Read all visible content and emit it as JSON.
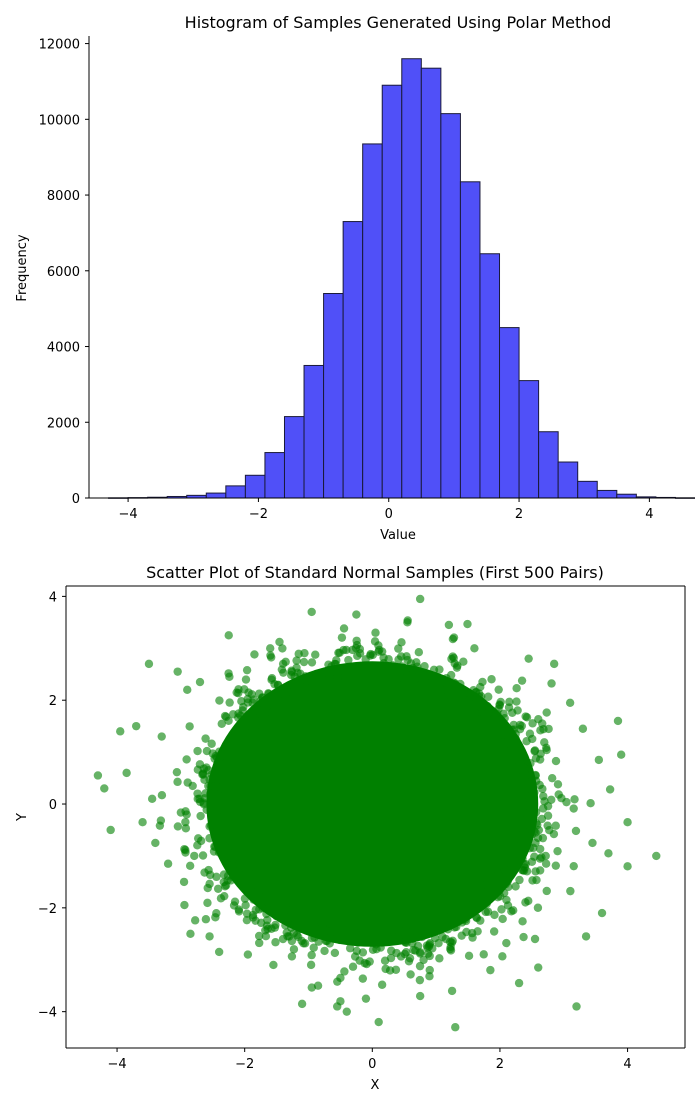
{
  "chart_data": [
    {
      "type": "bar",
      "title": "Histogram of Samples Generated Using Polar Method",
      "xlabel": "Value",
      "ylabel": "Frequency",
      "xlim": [
        -4.6,
        4.7
      ],
      "ylim": [
        0,
        12200
      ],
      "xticks": [
        -4,
        -2,
        0,
        2,
        4
      ],
      "xtick_labels": [
        "−4",
        "−2",
        "0",
        "2",
        "4"
      ],
      "yticks": [
        0,
        2000,
        4000,
        6000,
        8000,
        10000,
        12000
      ],
      "ytick_labels": [
        "0",
        "2000",
        "4000",
        "6000",
        "8000",
        "10000",
        "12000"
      ],
      "bar_color": "#5050f8",
      "edge_color": "#1a1a3a",
      "bins": {
        "start": -4.3,
        "width": 0.3,
        "counts": [
          5,
          10,
          20,
          40,
          70,
          130,
          320,
          600,
          1200,
          2150,
          3500,
          5400,
          7300,
          9350,
          10900,
          11600,
          11350,
          10150,
          8350,
          6450,
          4500,
          3100,
          1750,
          950,
          440,
          200,
          100,
          30,
          15,
          5
        ]
      },
      "grid": false
    },
    {
      "type": "scatter",
      "title": "Scatter Plot of Standard Normal Samples (First 500 Pairs)",
      "xlabel": "X",
      "ylabel": "Y",
      "xlim": [
        -4.8,
        4.9
      ],
      "ylim": [
        -4.7,
        4.2
      ],
      "xticks": [
        -4,
        -2,
        0,
        2,
        4
      ],
      "xtick_labels": [
        "−4",
        "−2",
        "0",
        "2",
        "4"
      ],
      "yticks": [
        -4,
        -2,
        0,
        2,
        4
      ],
      "ytick_labels": [
        "−4",
        "−2",
        "0",
        "2",
        "4"
      ],
      "point_color": "#008000",
      "point_alpha": 0.6,
      "points": [
        [
          -4.3,
          0.55
        ],
        [
          -4.2,
          0.3
        ],
        [
          -4.1,
          -0.5
        ],
        [
          -3.95,
          1.4
        ],
        [
          -3.85,
          0.6
        ],
        [
          -3.7,
          1.5
        ],
        [
          -3.5,
          2.7
        ],
        [
          -3.45,
          0.1
        ],
        [
          -3.3,
          1.3
        ],
        [
          -3.2,
          -1.15
        ],
        [
          -3.05,
          2.55
        ],
        [
          -2.95,
          -1.5
        ],
        [
          -2.9,
          2.2
        ],
        [
          -2.85,
          -2.5
        ],
        [
          -2.55,
          -2.55
        ],
        [
          -2.4,
          -2.85
        ],
        [
          -2.25,
          3.25
        ],
        [
          -1.95,
          -2.9
        ],
        [
          -1.6,
          3.0
        ],
        [
          -1.55,
          -3.1
        ],
        [
          -1.1,
          -3.85
        ],
        [
          -0.95,
          3.7
        ],
        [
          -0.85,
          -3.5
        ],
        [
          -0.55,
          -3.9
        ],
        [
          -0.5,
          -3.8
        ],
        [
          -0.4,
          -4.0
        ],
        [
          -0.25,
          3.65
        ],
        [
          -0.1,
          -3.75
        ],
        [
          0.05,
          3.3
        ],
        [
          0.1,
          -4.2
        ],
        [
          0.55,
          3.5
        ],
        [
          0.75,
          3.95
        ],
        [
          0.75,
          -3.7
        ],
        [
          0.9,
          -3.2
        ],
        [
          1.2,
          3.45
        ],
        [
          1.25,
          -3.6
        ],
        [
          1.3,
          -4.3
        ],
        [
          1.6,
          3.0
        ],
        [
          1.85,
          -3.2
        ],
        [
          2.3,
          -3.45
        ],
        [
          2.45,
          2.8
        ],
        [
          2.6,
          -3.15
        ],
        [
          2.85,
          2.7
        ],
        [
          3.1,
          1.95
        ],
        [
          3.2,
          -3.9
        ],
        [
          3.35,
          -2.55
        ],
        [
          3.55,
          0.85
        ],
        [
          3.6,
          -2.1
        ],
        [
          3.7,
          -0.95
        ],
        [
          3.85,
          1.6
        ],
        [
          3.9,
          0.95
        ],
        [
          4.0,
          -0.35
        ],
        [
          4.0,
          -1.2
        ],
        [
          4.45,
          -1.0
        ],
        [
          -3.4,
          -0.75
        ],
        [
          -3.6,
          -0.35
        ],
        [
          3.45,
          -0.75
        ],
        [
          3.3,
          1.45
        ],
        [
          -2.7,
          2.35
        ],
        [
          2.55,
          -2.6
        ]
      ],
      "core_cluster": {
        "center": [
          0,
          0
        ],
        "radius_x": 2.6,
        "radius_y": 2.75,
        "approx_count": 100000
      },
      "grid": false
    }
  ]
}
